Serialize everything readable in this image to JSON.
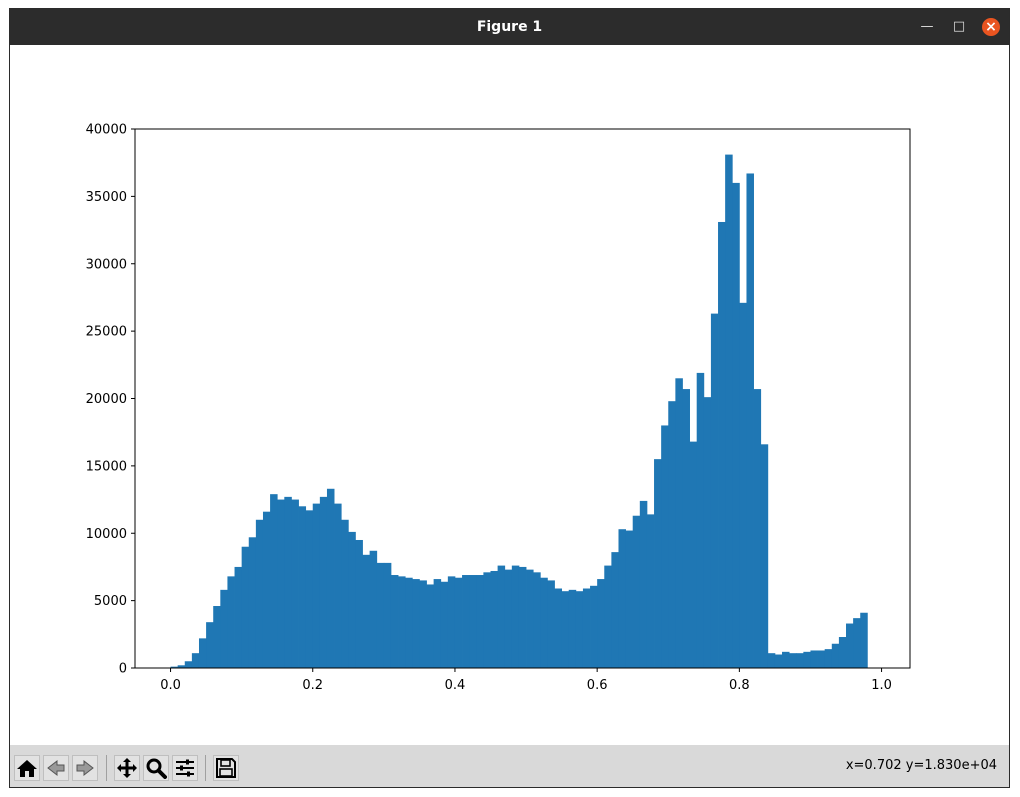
{
  "window": {
    "title": "Figure 1"
  },
  "colors": {
    "bar": "#1f77b4",
    "titlebar": "#2c2c2c",
    "close": "#e95420",
    "toolbar": "#d9d9d9"
  },
  "toolbar": {
    "buttons": [
      "home-icon",
      "back-icon",
      "forward-icon",
      "pan-icon",
      "zoom-icon",
      "configure-subplots-icon",
      "save-icon"
    ],
    "coords": "x=0.702 y=1.830e+04"
  },
  "chart_data": {
    "type": "bar",
    "bin_start": 0.0,
    "bin_width": 0.01,
    "values": [
      100,
      200,
      500,
      1100,
      2200,
      3400,
      4600,
      5800,
      6800,
      7500,
      9000,
      9700,
      11000,
      11600,
      12900,
      12500,
      12700,
      12500,
      12000,
      11700,
      12200,
      12700,
      13300,
      12200,
      11000,
      10100,
      9500,
      8400,
      8700,
      7800,
      7800,
      6900,
      6800,
      6700,
      6600,
      6500,
      6200,
      6600,
      6400,
      6800,
      6700,
      6900,
      6900,
      6900,
      7100,
      7200,
      7600,
      7300,
      7600,
      7500,
      7300,
      7100,
      6700,
      6500,
      5900,
      5700,
      5800,
      5700,
      5900,
      6100,
      6600,
      7600,
      8600,
      10300,
      10200,
      11300,
      12400,
      11400,
      15500,
      18000,
      19800,
      21500,
      20700,
      16800,
      21900,
      20100,
      26300,
      33100,
      38100,
      36000,
      27100,
      36700,
      20700,
      16600,
      1100,
      1000,
      1200,
      1100,
      1100,
      1200,
      1300,
      1300,
      1400,
      1800,
      2300,
      3300,
      3700,
      4100
    ],
    "xlim": [
      -0.05,
      1.04
    ],
    "ylim": [
      0,
      40000
    ],
    "xticks": [
      "0.0",
      "0.2",
      "0.4",
      "0.6",
      "0.8",
      "1.0"
    ],
    "yticks": [
      "0",
      "5000",
      "10000",
      "15000",
      "20000",
      "25000",
      "30000",
      "35000",
      "40000"
    ],
    "title": "",
    "xlabel": "",
    "ylabel": ""
  }
}
